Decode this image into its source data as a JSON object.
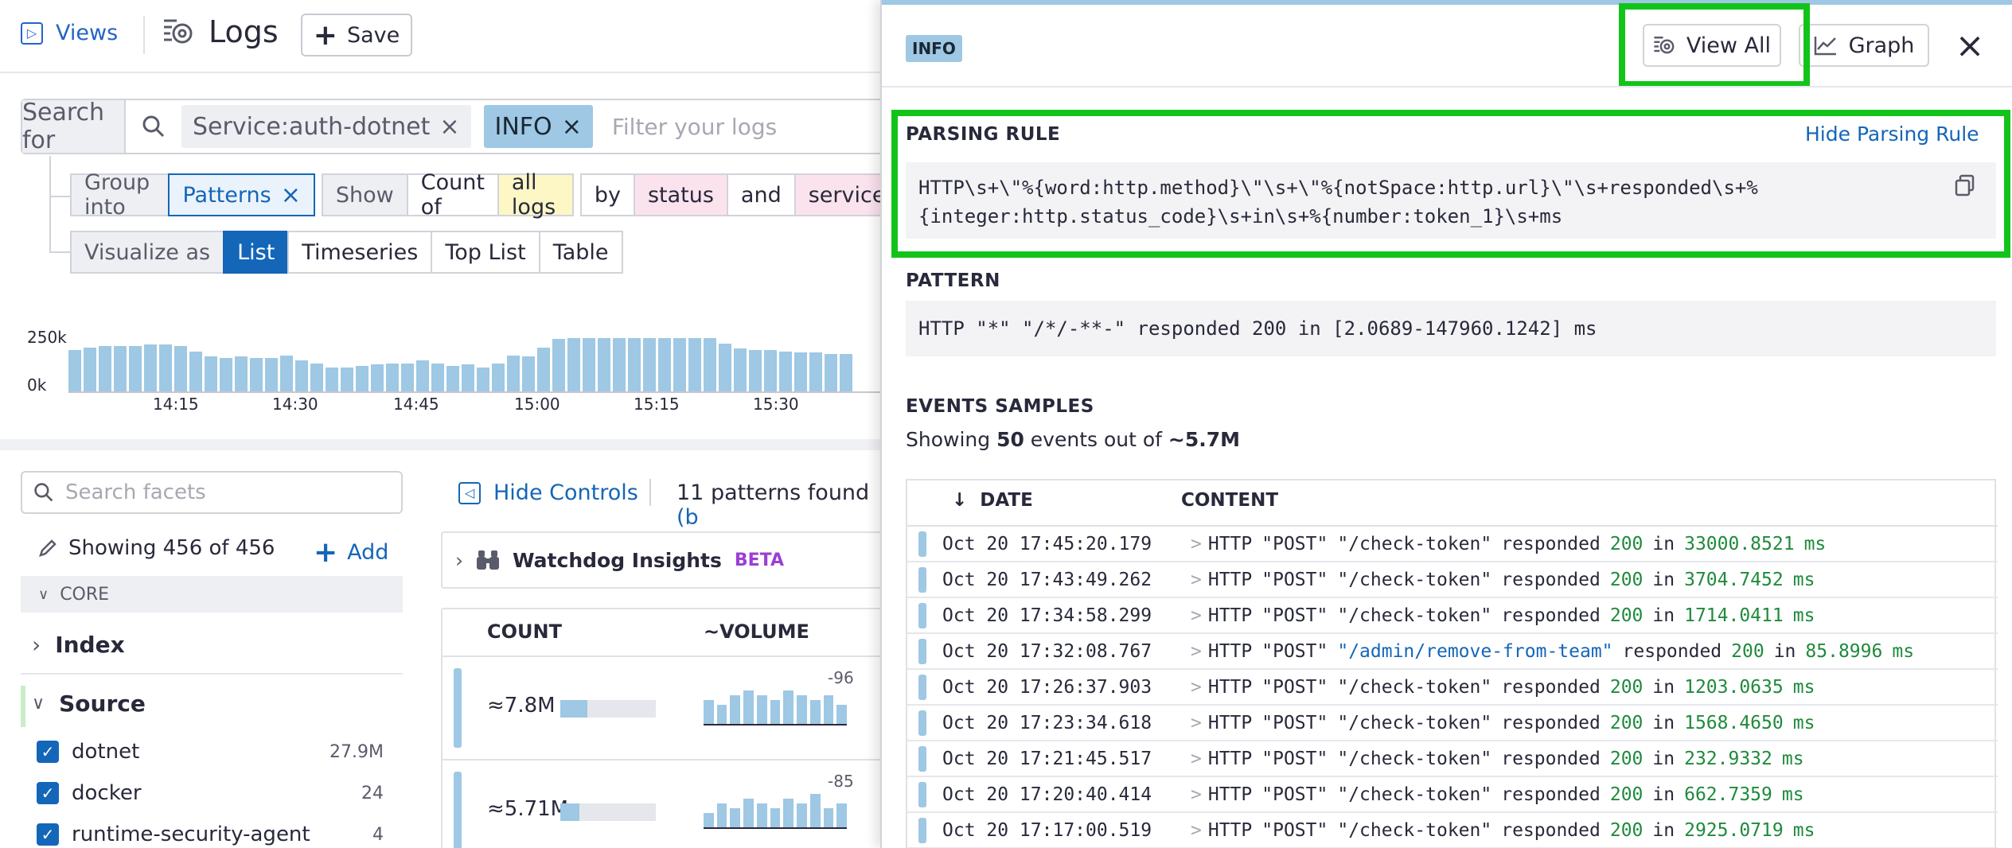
{
  "topbar": {
    "views_label": "Views",
    "logs_title": "Logs",
    "save_label": "Save"
  },
  "search": {
    "search_for_label": "Search for",
    "chips": [
      {
        "label": "Service:auth-dotnet"
      },
      {
        "label": "INFO"
      }
    ],
    "placeholder": "Filter your logs"
  },
  "controls": {
    "group_into_label": "Group into",
    "group_value": "Patterns",
    "show_label": "Show",
    "count_of": "Count of",
    "all_logs": "all logs",
    "by_label": "by",
    "status_label": "status",
    "and_label": "and",
    "service_label": "service",
    "visualize_label": "Visualize as",
    "viz_options": [
      "List",
      "Timeseries",
      "Top List",
      "Table"
    ],
    "viz_selected": "List"
  },
  "chart_data": {
    "type": "bar",
    "y_ticks": [
      "250k",
      "0k"
    ],
    "x_ticks": [
      "14:15",
      "14:30",
      "14:45",
      "15:00",
      "15:15",
      "15:30"
    ],
    "values": [
      0.62,
      0.66,
      0.68,
      0.68,
      0.68,
      0.7,
      0.7,
      0.68,
      0.6,
      0.52,
      0.5,
      0.52,
      0.5,
      0.5,
      0.54,
      0.46,
      0.42,
      0.36,
      0.36,
      0.38,
      0.4,
      0.42,
      0.42,
      0.46,
      0.42,
      0.38,
      0.4,
      0.36,
      0.42,
      0.54,
      0.52,
      0.66,
      0.78,
      0.8,
      0.8,
      0.8,
      0.8,
      0.8,
      0.8,
      0.8,
      0.8,
      0.8,
      0.8,
      0.72,
      0.64,
      0.62,
      0.62,
      0.6,
      0.58,
      0.58,
      0.56,
      0.56
    ]
  },
  "facets": {
    "search_placeholder": "Search facets",
    "showing": "Showing 456 of 456",
    "add_label": "Add",
    "core_label": "CORE",
    "index_label": "Index",
    "source_label": "Source",
    "items": [
      {
        "name": "dotnet",
        "count": "27.9M"
      },
      {
        "name": "docker",
        "count": "24"
      },
      {
        "name": "runtime-security-agent",
        "count": "4"
      }
    ]
  },
  "patterns_pane": {
    "hide_controls": "Hide Controls",
    "patterns_found": "11 patterns found",
    "patterns_found_suffix": "(b",
    "watchdog_label": "Watchdog Insights",
    "beta_label": "BETA",
    "count_header": "COUNT",
    "volume_header": "~VOLUME",
    "rows": [
      {
        "count": "≈7.8M",
        "fill": 0.28,
        "volume_label": "-96",
        "volume_bars": [
          0.5,
          0.4,
          0.6,
          0.7,
          0.6,
          0.5,
          0.7,
          0.6,
          0.5,
          0.6,
          0.4
        ]
      },
      {
        "count": "≈5.71M",
        "fill": 0.2,
        "volume_label": "-85",
        "volume_bars": [
          0.3,
          0.5,
          0.4,
          0.6,
          0.5,
          0.4,
          0.6,
          0.5,
          0.7,
          0.4,
          0.5
        ]
      }
    ]
  },
  "panel": {
    "badge": "INFO",
    "view_all_label": "View All",
    "graph_label": "Graph",
    "parsing_rule_title": "PARSING RULE",
    "hide_parsing_rule": "Hide Parsing Rule",
    "parsing_rule_line1": "HTTP\\s+\\\"%{word:http.method}\\\"\\s+\\\"%{notSpace:http.url}\\\"\\s+responded\\s+%",
    "parsing_rule_line2": "{integer:http.status_code}\\s+in\\s+%{number:token_1}\\s+ms",
    "pattern_title": "PATTERN",
    "pattern_text": "HTTP \"*\" \"/*/-**-\" responded 200 in [2.0689-147960.1242] ms",
    "events_title": "EVENTS SAMPLES",
    "showing_prefix": "Showing ",
    "showing_count": "50",
    "showing_middle": " events out of ",
    "showing_total": "~5.7M",
    "date_header": "DATE",
    "content_header": "CONTENT",
    "events": [
      {
        "date": "Oct 20 17:45:20.179",
        "method": "\"POST\"",
        "url": "\"/check-token\"",
        "status": "200",
        "duration": "33000.8521"
      },
      {
        "date": "Oct 20 17:43:49.262",
        "method": "\"POST\"",
        "url": "\"/check-token\"",
        "status": "200",
        "duration": "3704.7452"
      },
      {
        "date": "Oct 20 17:34:58.299",
        "method": "\"POST\"",
        "url": "\"/check-token\"",
        "status": "200",
        "duration": "1714.0411"
      },
      {
        "date": "Oct 20 17:32:08.767",
        "method": "\"POST\"",
        "url": "\"/admin/remove-from-team\"",
        "status": "200",
        "duration": "85.8996"
      },
      {
        "date": "Oct 20 17:26:37.903",
        "method": "\"POST\"",
        "url": "\"/check-token\"",
        "status": "200",
        "duration": "1203.0635"
      },
      {
        "date": "Oct 20 17:23:34.618",
        "method": "\"POST\"",
        "url": "\"/check-token\"",
        "status": "200",
        "duration": "1568.4650"
      },
      {
        "date": "Oct 20 17:21:45.517",
        "method": "\"POST\"",
        "url": "\"/check-token\"",
        "status": "200",
        "duration": "232.9332"
      },
      {
        "date": "Oct 20 17:20:40.414",
        "method": "\"POST\"",
        "url": "\"/check-token\"",
        "status": "200",
        "duration": "662.7359"
      },
      {
        "date": "Oct 20 17:17:00.519",
        "method": "\"POST\"",
        "url": "\"/check-token\"",
        "status": "200",
        "duration": "2925.0719"
      }
    ],
    "word_http": "HTTP",
    "word_responded": "responded",
    "word_in": "in",
    "word_ms": "ms"
  },
  "colors": {
    "accent": "#1466b8",
    "info": "#9ec8e4",
    "highlight": "#12c41a",
    "number_green": "#1f8a3c"
  }
}
